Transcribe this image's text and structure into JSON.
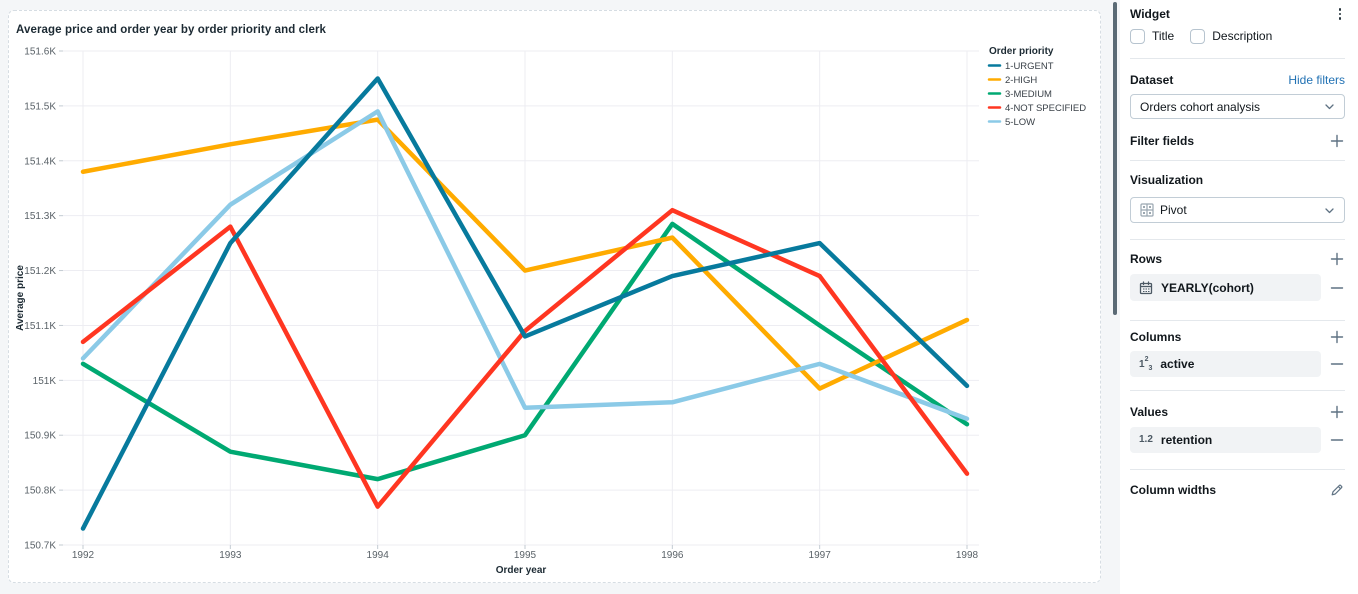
{
  "chart_data": {
    "type": "line",
    "title": "Average price and order year by order priority and clerk",
    "xlabel": "Order year",
    "ylabel": "Average price",
    "x": [
      1992,
      1993,
      1994,
      1995,
      1996,
      1997,
      1998
    ],
    "ylim": [
      150700,
      151600
    ],
    "yticks": [
      {
        "v": 150700,
        "label": "150.7K"
      },
      {
        "v": 150800,
        "label": "150.8K"
      },
      {
        "v": 150900,
        "label": "150.9K"
      },
      {
        "v": 151000,
        "label": "151K"
      },
      {
        "v": 151100,
        "label": "151.1K"
      },
      {
        "v": 151200,
        "label": "151.2K"
      },
      {
        "v": 151300,
        "label": "151.3K"
      },
      {
        "v": 151400,
        "label": "151.4K"
      },
      {
        "v": 151500,
        "label": "151.5K"
      },
      {
        "v": 151600,
        "label": "151.6K"
      }
    ],
    "grid": true,
    "legend_title": "Order priority",
    "legend_position": "right",
    "series": [
      {
        "name": "1-URGENT",
        "color": "#077A9D",
        "values": [
          150730,
          151250,
          151550,
          151080,
          151190,
          151250,
          150990
        ]
      },
      {
        "name": "2-HIGH",
        "color": "#FFAB00",
        "values": [
          151380,
          151430,
          151475,
          151200,
          151260,
          150985,
          151110
        ]
      },
      {
        "name": "3-MEDIUM",
        "color": "#00A972",
        "values": [
          151030,
          150870,
          150820,
          150900,
          151285,
          151100,
          150920
        ]
      },
      {
        "name": "4-NOT SPECIFIED",
        "color": "#FF3621",
        "values": [
          151070,
          151280,
          150770,
          151090,
          151310,
          151190,
          150830
        ]
      },
      {
        "name": "5-LOW",
        "color": "#8BCAE7",
        "values": [
          151040,
          151320,
          151490,
          150950,
          150960,
          151030,
          150930
        ]
      }
    ]
  },
  "panel": {
    "title": "Widget",
    "options": [
      {
        "label": "Title",
        "checked": false
      },
      {
        "label": "Description",
        "checked": false
      }
    ],
    "dataset": {
      "label": "Dataset",
      "action": "Hide filters",
      "selected": "Orders cohort analysis"
    },
    "filter_fields": {
      "label": "Filter fields"
    },
    "visualization": {
      "label": "Visualization",
      "selected": "Pivot"
    },
    "rows": {
      "label": "Rows",
      "items": [
        {
          "label": "YEARLY(cohort)",
          "icon": "calendar-icon"
        }
      ]
    },
    "columns": {
      "label": "Columns",
      "items": [
        {
          "label": "active",
          "icon": "integer-type-icon"
        }
      ]
    },
    "values": {
      "label": "Values",
      "items": [
        {
          "label": "retention",
          "icon": "decimal-type-icon"
        }
      ]
    },
    "column_widths": {
      "label": "Column widths"
    }
  },
  "colors": {
    "link": "#2272B4",
    "resize_handle": "#5a6a75",
    "card_background": "#ffffff",
    "page_background": "#f4f6f8",
    "pill_background": "#f1f3f5"
  }
}
